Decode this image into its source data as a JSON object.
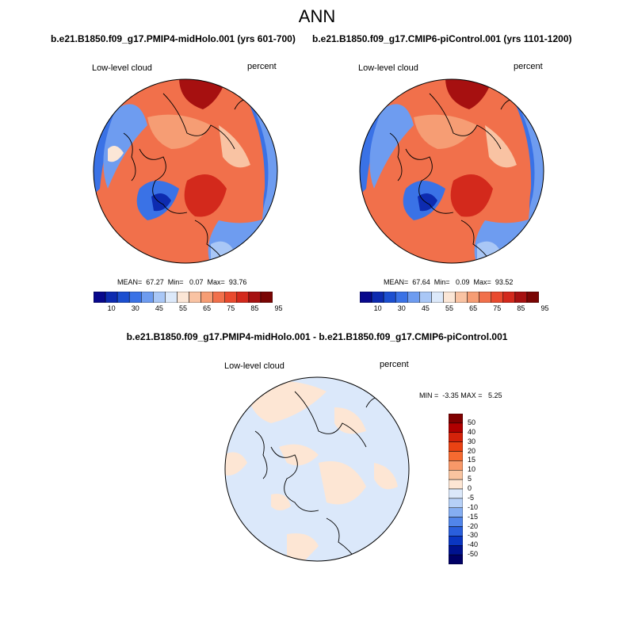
{
  "page_title": "ANN",
  "panels": [
    {
      "case_title": "b.e21.B1850.f09_g17.PMIP4-midHolo.001 (yrs 601-700)",
      "variable_label": "Low-level cloud",
      "units_label": "percent",
      "stats_text": "MEAN=  67.27  Min=   0.07  Max=  93.76",
      "colorbar_labels": [
        "10",
        "30",
        "45",
        "55",
        "65",
        "75",
        "85",
        "95"
      ]
    },
    {
      "case_title": "b.e21.B1850.f09_g17.CMIP6-piControl.001 (yrs 1101-1200)",
      "variable_label": "Low-level cloud",
      "units_label": "percent",
      "stats_text": "MEAN=  67.64  Min=   0.09  Max=  93.52",
      "colorbar_labels": [
        "10",
        "30",
        "45",
        "55",
        "65",
        "75",
        "85",
        "95"
      ]
    }
  ],
  "diff_panel": {
    "title": "b.e21.B1850.f09_g17.PMIP4-midHolo.001 - b.e21.B1850.f09_g17.CMIP6-piControl.001",
    "variable_label": "Low-level cloud",
    "units_label": "percent",
    "stats_text": "MIN =  -3.35 MAX =   5.25",
    "colorbar_labels": [
      "50",
      "40",
      "30",
      "20",
      "15",
      "10",
      "5",
      "0",
      "-5",
      "-10",
      "-15",
      "-20",
      "-30",
      "-40",
      "-50"
    ]
  },
  "colors": {
    "seq_palette": [
      "#08088c",
      "#0d2bb0",
      "#1c4fd0",
      "#3a72e6",
      "#6e9cf0",
      "#a9c7f6",
      "#dce9fa",
      "#fbe6d6",
      "#f9c3a3",
      "#f69d74",
      "#f1704b",
      "#e94a2e",
      "#d3291c",
      "#a61010",
      "#7a0504"
    ],
    "diff_palette": [
      "#800000",
      "#b00000",
      "#d4220a",
      "#ea4213",
      "#f66a30",
      "#f89868",
      "#f9c4a0",
      "#fde6d4",
      "#dbe8fa",
      "#b6d0f7",
      "#85aef2",
      "#5185ea",
      "#2a5fdc",
      "#0a36c2",
      "#00128f",
      "#000066"
    ]
  },
  "map_description": "North polar stereographic projection, annual mean low-level cloud fraction"
}
